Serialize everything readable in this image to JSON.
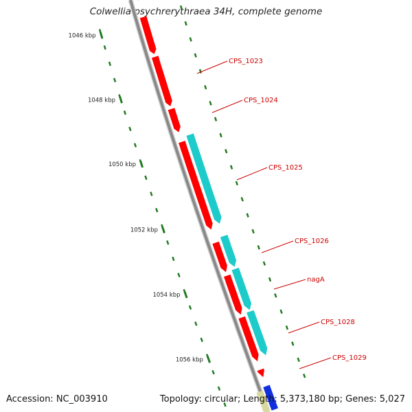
{
  "title": "Colwellia psychrerythraea 34H, complete genome",
  "accession": "Accession: NC_003910",
  "summary": "Topology: circular; Length: 5,373,180 bp; Genes: 5,027",
  "ruler": {
    "unit": "kbp",
    "labels": [
      "1046 kbp",
      "1048 kbp",
      "1050 kbp",
      "1052 kbp",
      "1054 kbp",
      "1056 kbp"
    ]
  },
  "colors": {
    "backbone": "#888888",
    "forward_gene": "#ff0000",
    "cds": "#1ecbcb",
    "tick": "#207a20",
    "label": "#cc0000"
  },
  "genes": [
    {
      "name": "CPS_1023",
      "strand": "forward"
    },
    {
      "name": "CPS_1024",
      "strand": "forward"
    },
    {
      "name": "CPS_1025",
      "strand": "forward",
      "cds": true
    },
    {
      "name": "CPS_1026",
      "strand": "forward",
      "cds": true
    },
    {
      "name": "nagA",
      "strand": "forward",
      "cds": true
    },
    {
      "name": "CPS_1028",
      "strand": "forward",
      "cds": true
    },
    {
      "name": "CPS_1029",
      "strand": "forward"
    }
  ]
}
